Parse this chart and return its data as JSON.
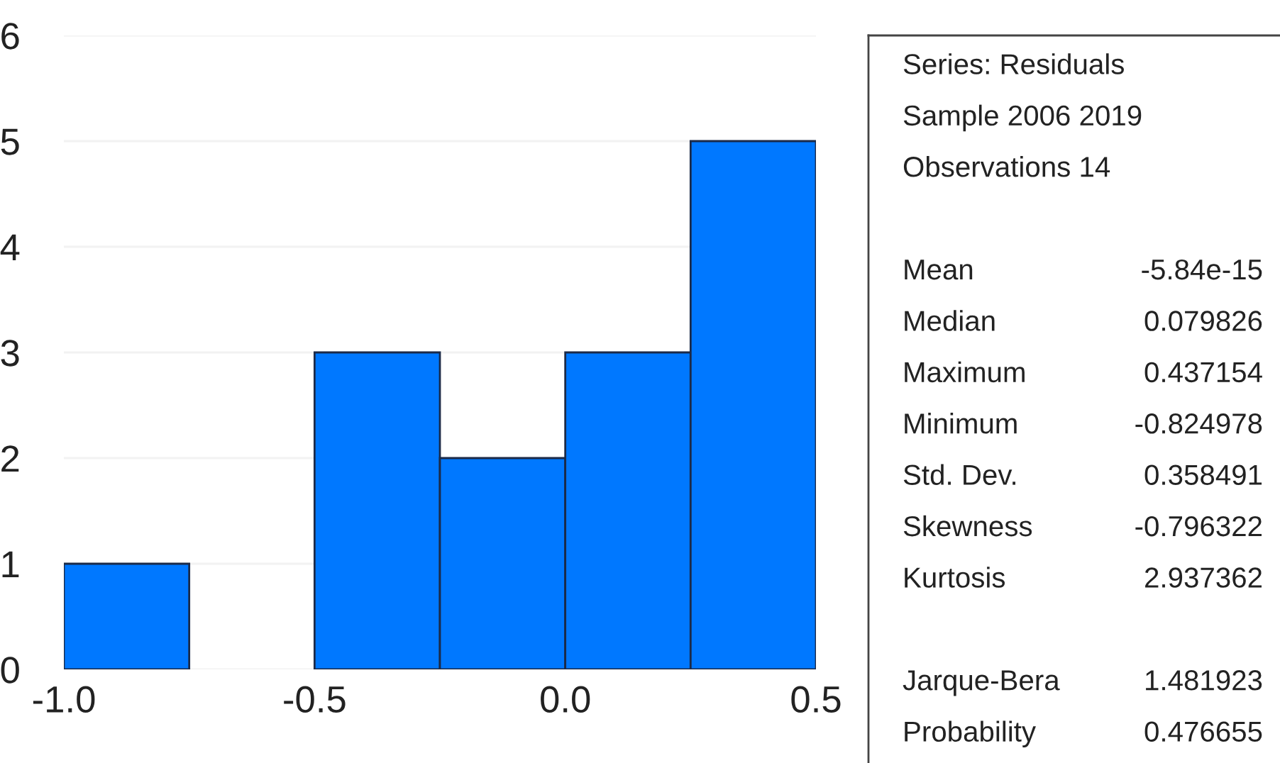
{
  "chart_data": [
    {
      "type": "histogram",
      "bins": [
        -1.0,
        -0.75,
        -0.5,
        -0.25,
        0.0,
        0.25,
        0.5
      ],
      "values": [
        1,
        0,
        3,
        2,
        3,
        5
      ],
      "color": "#0078ff",
      "xlim": [
        -1.0,
        0.5
      ],
      "xticks": [
        {
          "value": -1.0,
          "label": "-1.0"
        },
        {
          "value": -0.5,
          "label": "-0.5"
        },
        {
          "value": 0.0,
          "label": "0.0"
        },
        {
          "value": 0.5,
          "label": "0.5"
        }
      ],
      "ylim": [
        0,
        6
      ],
      "yticks": [
        0,
        1,
        2,
        3,
        4,
        5,
        6
      ],
      "grid": "y"
    },
    {
      "type": "other",
      "annotations": [
        "Series: Residuals",
        "Sample 2006 2019",
        "Observations 14",
        "Mean",
        "-5.84e-15",
        "Median",
        "0.079826",
        "Maximum",
        "0.437154",
        "Minimum",
        "-0.824978",
        "Std. Dev.",
        "0.358491",
        "Skewness",
        "-0.796322",
        "Kurtosis",
        "2.937362",
        "Jarque-Bera",
        "1.481923",
        "Probability",
        "0.476655"
      ]
    }
  ]
}
